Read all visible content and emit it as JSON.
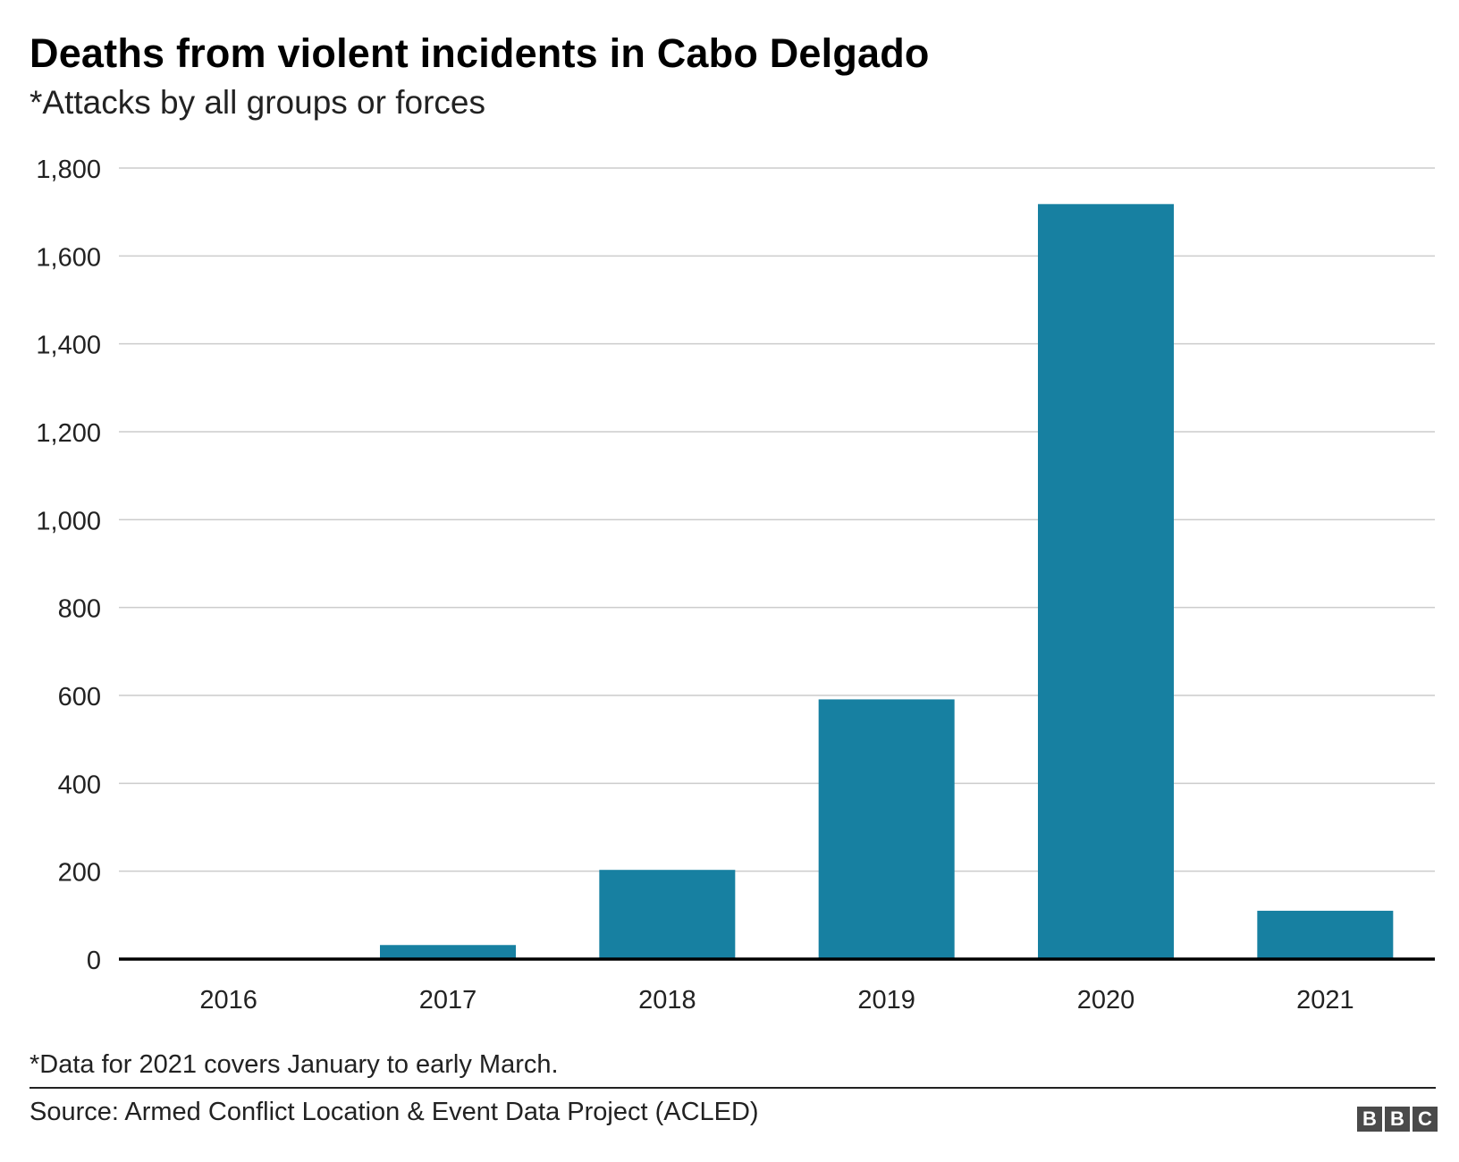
{
  "title": "Deaths from violent incidents in Cabo Delgado",
  "subtitle": "*Attacks by all groups or forces",
  "footnote": "*Data for 2021 covers January to early March.",
  "source": "Source: Armed Conflict Location & Event Data Project (ACLED)",
  "logo": {
    "letters": [
      "B",
      "B",
      "C"
    ],
    "color": "#4a4a4a"
  },
  "colors": {
    "bar": "#1780a1",
    "grid": "#cccccc",
    "baseline": "#000000"
  },
  "chart_data": {
    "type": "bar",
    "title": "Deaths from violent incidents in Cabo Delgado",
    "subtitle": "*Attacks by all groups or forces",
    "xlabel": "",
    "ylabel": "",
    "categories": [
      "2016",
      "2017",
      "2018",
      "2019",
      "2020",
      "2021"
    ],
    "values": [
      0,
      32,
      203,
      591,
      1718,
      110
    ],
    "ylim": [
      0,
      1800
    ],
    "yticks": [
      0,
      200,
      400,
      600,
      800,
      1000,
      1200,
      1400,
      1600,
      1800
    ],
    "ytick_labels": [
      "0",
      "200",
      "400",
      "600",
      "800",
      "1,000",
      "1,200",
      "1,400",
      "1,600",
      "1,800"
    ],
    "grid": true,
    "legend": "none"
  }
}
